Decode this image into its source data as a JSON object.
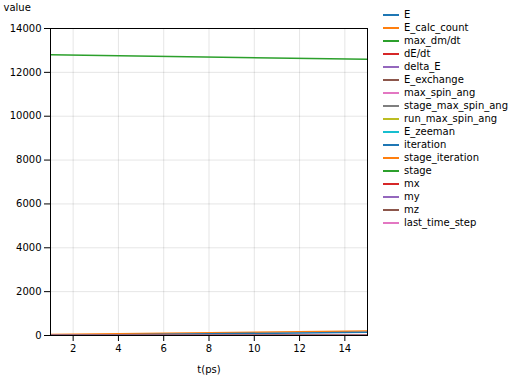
{
  "chart_data": {
    "type": "line",
    "xlabel": "t(ps)",
    "ylabel": "value",
    "x": [
      1,
      15
    ],
    "xlim": [
      1,
      15
    ],
    "xticks": [
      2,
      4,
      6,
      8,
      10,
      12,
      14
    ],
    "ylim": [
      0,
      14000
    ],
    "yticks": [
      0,
      2000,
      4000,
      6000,
      8000,
      10000,
      12000,
      14000
    ],
    "grid": true,
    "legend": "upper right",
    "series": [
      {
        "name": "E",
        "color": "#1f77b4",
        "values": [
          0,
          0
        ]
      },
      {
        "name": "E_calc_count",
        "color": "#ff7f0e",
        "values": [
          50,
          200
        ]
      },
      {
        "name": "max_dm/dt",
        "color": "#2ca02c",
        "values": [
          12800,
          12600
        ]
      },
      {
        "name": "dE/dt",
        "color": "#d62728",
        "values": [
          0,
          0
        ]
      },
      {
        "name": "delta_E",
        "color": "#9467bd",
        "values": [
          0,
          0
        ]
      },
      {
        "name": "E_exchange",
        "color": "#8c564b",
        "values": [
          0,
          0
        ]
      },
      {
        "name": "max_spin_ang",
        "color": "#e377c2",
        "values": [
          0,
          0
        ]
      },
      {
        "name": "stage_max_spin_ang",
        "color": "#7f7f7f",
        "values": [
          0,
          0
        ]
      },
      {
        "name": "run_max_spin_ang",
        "color": "#bcbd22",
        "values": [
          0,
          0
        ]
      },
      {
        "name": "E_zeeman",
        "color": "#17becf",
        "values": [
          0,
          0
        ]
      },
      {
        "name": "iteration",
        "color": "#1f77b4",
        "values": [
          0,
          150
        ]
      },
      {
        "name": "stage_iteration",
        "color": "#ff7f0e",
        "values": [
          0,
          0
        ]
      },
      {
        "name": "stage",
        "color": "#2ca02c",
        "values": [
          0,
          0
        ]
      },
      {
        "name": "mx",
        "color": "#d62728",
        "values": [
          0,
          0
        ]
      },
      {
        "name": "my",
        "color": "#9467bd",
        "values": [
          0,
          0
        ]
      },
      {
        "name": "mz",
        "color": "#8c564b",
        "values": [
          0,
          0
        ]
      },
      {
        "name": "last_time_step",
        "color": "#e377c2",
        "values": [
          0,
          0
        ]
      }
    ]
  }
}
